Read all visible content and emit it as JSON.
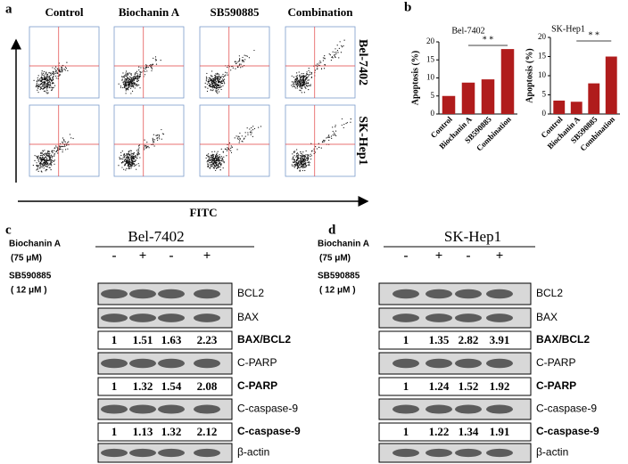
{
  "panel_a": {
    "label": "a",
    "columns": [
      "Control",
      "Biochanin A",
      "SB590885",
      "Combination"
    ],
    "rows": [
      "Bel-7402",
      "SK-Hep1"
    ],
    "x_axis_label": "FITC"
  },
  "panel_b": {
    "label": "b"
  },
  "chart_data": [
    {
      "type": "bar",
      "title": "Bel-7402",
      "y_label": "Apoptosis (%)",
      "categories": [
        "Control",
        "Biochanin A",
        "SB590885",
        "Combination"
      ],
      "values": [
        5,
        8.7,
        9.6,
        18
      ],
      "color": "#b01c1c",
      "ylim": [
        0,
        20
      ],
      "yticks": [
        0,
        5,
        10,
        15,
        20
      ],
      "annotation": "* *"
    },
    {
      "type": "bar",
      "title": "SK-Hep1",
      "y_label": "Apoptosis (%)",
      "categories": [
        "Control",
        "Biochanin A",
        "SB590885",
        "Combination"
      ],
      "values": [
        3.5,
        3.2,
        8,
        15
      ],
      "color": "#b01c1c",
      "ylim": [
        0,
        20
      ],
      "yticks": [
        0,
        5,
        10,
        15,
        20
      ],
      "annotation": "* *"
    }
  ],
  "blots": [
    {
      "label": "c",
      "title": "Bel-7402",
      "treatments": [
        {
          "name": "Biochanin A",
          "dose": "(75 μM)",
          "signs": [
            "-",
            "+",
            "-",
            "+"
          ]
        },
        {
          "name": "SB590885",
          "dose": "( 12 μM )",
          "signs": [
            "-",
            "-",
            "+",
            "+"
          ]
        }
      ],
      "rows": [
        {
          "label": "BCL2"
        },
        {
          "label": "BAX"
        },
        {
          "label": "BAX/BCL2",
          "values": [
            1,
            1.51,
            1.63,
            2.23
          ]
        },
        {
          "label": "C-PARP"
        },
        {
          "label": "C-PARP",
          "values": [
            1,
            1.32,
            1.54,
            2.08
          ]
        },
        {
          "label": "C-caspase-9"
        },
        {
          "label": "C-caspase-9",
          "values": [
            1,
            1.13,
            1.32,
            2.12
          ]
        },
        {
          "label": "β-actin"
        }
      ]
    },
    {
      "label": "d",
      "title": "SK-Hep1",
      "treatments": [
        {
          "name": "Biochanin A",
          "dose": "(75 μM)",
          "signs": [
            "-",
            "+",
            "-",
            "+"
          ]
        },
        {
          "name": "SB590885",
          "dose": "( 12 μM )",
          "signs": [
            "-",
            "-",
            "+",
            "+"
          ]
        }
      ],
      "rows": [
        {
          "label": "BCL2"
        },
        {
          "label": "BAX"
        },
        {
          "label": "BAX/BCL2",
          "values": [
            1,
            1.35,
            2.82,
            3.91
          ]
        },
        {
          "label": "C-PARP"
        },
        {
          "label": "C-PARP",
          "values": [
            1,
            1.24,
            1.52,
            1.92
          ]
        },
        {
          "label": "C-caspase-9"
        },
        {
          "label": "C-caspase-9",
          "values": [
            1,
            1.22,
            1.34,
            1.91
          ]
        },
        {
          "label": "β-actin"
        }
      ]
    }
  ]
}
